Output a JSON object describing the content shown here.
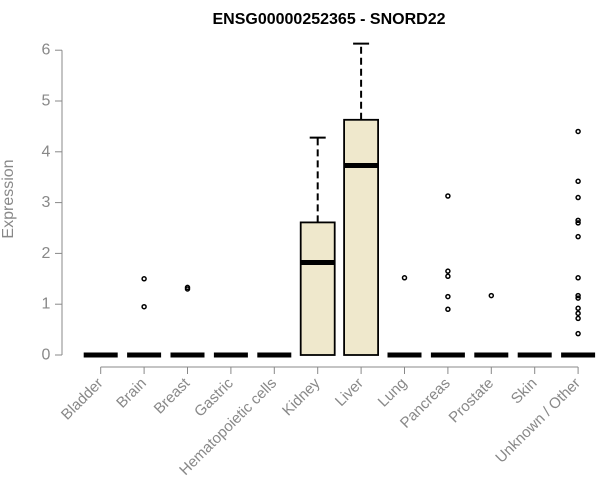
{
  "chart_data": {
    "type": "boxplot",
    "title": "ENSG00000252365 - SNORD22",
    "ylabel": "Expression",
    "xlabel": "",
    "ylim": [
      0,
      6
    ],
    "yticks": [
      0,
      1,
      2,
      3,
      4,
      5,
      6
    ],
    "grid": false,
    "colors": {
      "box_fill": "#efe8cc",
      "stroke": "#000000",
      "axis": "#888888",
      "title": "#000000"
    },
    "categories": [
      "Bladder",
      "Brain",
      "Breast",
      "Gastric",
      "Hematopoietic cells",
      "Kidney",
      "Liver",
      "Lung",
      "Pancreas",
      "Prostate",
      "Skin",
      "Unknown / Other"
    ],
    "boxes": [
      {
        "category": "Bladder",
        "q1": 0,
        "median": 0,
        "q3": 0,
        "whisker_low": 0,
        "whisker_high": 0,
        "outliers": []
      },
      {
        "category": "Brain",
        "q1": 0,
        "median": 0,
        "q3": 0,
        "whisker_low": 0,
        "whisker_high": 0,
        "outliers": [
          0.95,
          1.5
        ]
      },
      {
        "category": "Breast",
        "q1": 0,
        "median": 0,
        "q3": 0,
        "whisker_low": 0,
        "whisker_high": 0,
        "outliers": [
          1.3,
          1.33
        ]
      },
      {
        "category": "Gastric",
        "q1": 0,
        "median": 0,
        "q3": 0,
        "whisker_low": 0,
        "whisker_high": 0,
        "outliers": []
      },
      {
        "category": "Hematopoietic cells",
        "q1": 0,
        "median": 0,
        "q3": 0,
        "whisker_low": 0,
        "whisker_high": 0,
        "outliers": []
      },
      {
        "category": "Kidney",
        "q1": 0,
        "median": 1.82,
        "q3": 2.61,
        "whisker_low": 0,
        "whisker_high": 4.28,
        "outliers": []
      },
      {
        "category": "Liver",
        "q1": 0,
        "median": 3.73,
        "q3": 4.63,
        "whisker_low": 0,
        "whisker_high": 6.13,
        "outliers": []
      },
      {
        "category": "Lung",
        "q1": 0,
        "median": 0,
        "q3": 0,
        "whisker_low": 0,
        "whisker_high": 0,
        "outliers": [
          1.52
        ]
      },
      {
        "category": "Pancreas",
        "q1": 0,
        "median": 0,
        "q3": 0,
        "whisker_low": 0,
        "whisker_high": 0,
        "outliers": [
          0.9,
          1.15,
          1.55,
          1.65,
          3.13
        ]
      },
      {
        "category": "Prostate",
        "q1": 0,
        "median": 0,
        "q3": 0,
        "whisker_low": 0,
        "whisker_high": 0,
        "outliers": [
          1.17
        ]
      },
      {
        "category": "Skin",
        "q1": 0,
        "median": 0,
        "q3": 0,
        "whisker_low": 0,
        "whisker_high": 0,
        "outliers": []
      },
      {
        "category": "Unknown / Other",
        "q1": 0,
        "median": 0,
        "q3": 0,
        "whisker_low": 0,
        "whisker_high": 0,
        "outliers": [
          0.42,
          0.72,
          0.82,
          0.92,
          1.12,
          1.17,
          1.52,
          2.33,
          2.6,
          2.65,
          3.1,
          3.42,
          4.4
        ]
      }
    ]
  }
}
